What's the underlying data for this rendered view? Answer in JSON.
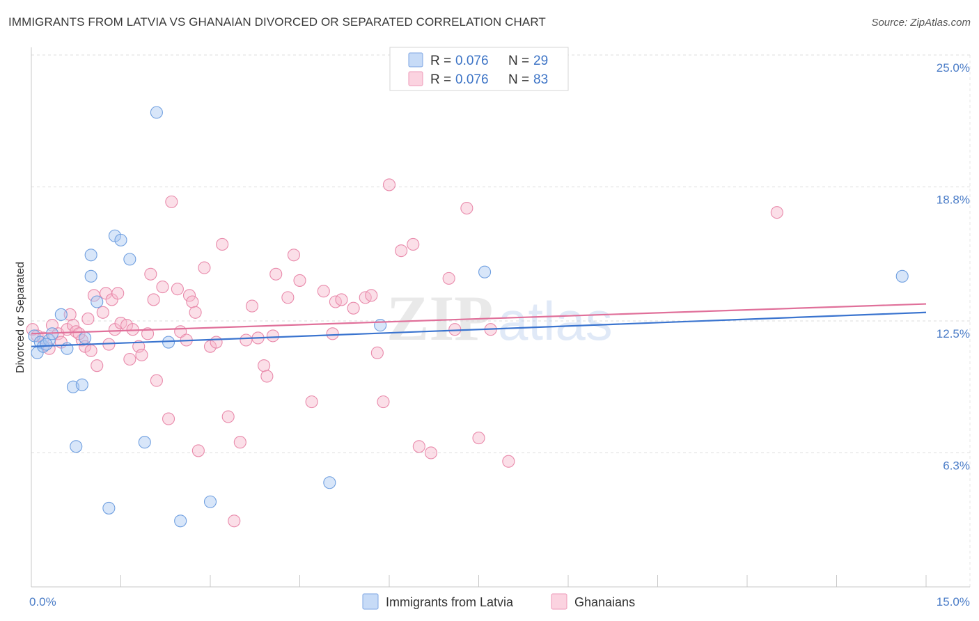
{
  "header": {
    "title": "IMMIGRANTS FROM LATVIA VS GHANAIAN DIVORCED OR SEPARATED CORRELATION CHART",
    "source": "Source: ZipAtlas.com"
  },
  "watermark": {
    "part1": "ZIP",
    "part2": "atlas"
  },
  "legend": {
    "rows": [
      {
        "r_label": "R =",
        "r_value": "0.076",
        "n_label": "N =",
        "n_value": "29",
        "color": "#8fb4ea"
      },
      {
        "r_label": "R =",
        "r_value": "0.076",
        "n_label": "N =",
        "n_value": "83",
        "color": "#f2a6bf"
      }
    ]
  },
  "bottom_legend": {
    "items": [
      {
        "label": "Immigrants from Latvia",
        "color": "#8fb4ea"
      },
      {
        "label": "Ghanaians",
        "color": "#f2a6bf"
      }
    ]
  },
  "chart_data": {
    "type": "scatter",
    "title": "IMMIGRANTS FROM LATVIA VS GHANAIAN DIVORCED OR SEPARATED CORRELATION CHART",
    "xlabel": "",
    "ylabel": "Divorced or Separated",
    "xlim": [
      0,
      15
    ],
    "ylim": [
      0,
      25
    ],
    "x_tick_labels": [
      "0.0%",
      "15.0%"
    ],
    "y_ticks": [
      6.3,
      12.5,
      18.8,
      25.0
    ],
    "y_tick_labels": [
      "6.3%",
      "12.5%",
      "18.8%",
      "25.0%"
    ],
    "grid": true,
    "legend_placement": "top-center",
    "series": [
      {
        "name": "Immigrants from Latvia",
        "color": "#6f9fe0",
        "fill": "#a9c7f1",
        "trend": {
          "x": [
            0,
            15
          ],
          "y": [
            11.3,
            12.9
          ]
        },
        "points": [
          [
            0.05,
            11.8
          ],
          [
            0.1,
            11.0
          ],
          [
            0.15,
            11.5
          ],
          [
            0.2,
            11.3
          ],
          [
            0.3,
            11.6
          ],
          [
            0.35,
            11.9
          ],
          [
            0.5,
            12.8
          ],
          [
            0.6,
            11.2
          ],
          [
            0.7,
            9.4
          ],
          [
            0.75,
            6.6
          ],
          [
            0.85,
            9.5
          ],
          [
            0.9,
            11.7
          ],
          [
            1.0,
            15.6
          ],
          [
            1.0,
            14.6
          ],
          [
            1.1,
            13.4
          ],
          [
            1.3,
            3.7
          ],
          [
            1.4,
            16.5
          ],
          [
            1.5,
            16.3
          ],
          [
            1.65,
            15.4
          ],
          [
            1.9,
            6.8
          ],
          [
            2.1,
            22.3
          ],
          [
            2.3,
            11.5
          ],
          [
            2.5,
            3.1
          ],
          [
            3.0,
            4.0
          ],
          [
            5.0,
            4.9
          ],
          [
            5.85,
            12.3
          ],
          [
            7.6,
            14.8
          ],
          [
            14.6,
            14.6
          ],
          [
            0.25,
            11.4
          ]
        ]
      },
      {
        "name": "Ghanaians",
        "color": "#e98aab",
        "fill": "#f6b8cc",
        "trend": {
          "x": [
            0,
            15
          ],
          "y": [
            11.9,
            13.3
          ]
        },
        "points": [
          [
            0.02,
            12.1
          ],
          [
            0.1,
            11.8
          ],
          [
            0.2,
            11.7
          ],
          [
            0.3,
            11.2
          ],
          [
            0.35,
            12.3
          ],
          [
            0.45,
            11.9
          ],
          [
            0.5,
            11.5
          ],
          [
            0.6,
            12.1
          ],
          [
            0.65,
            12.8
          ],
          [
            0.7,
            12.3
          ],
          [
            0.75,
            12.0
          ],
          [
            0.85,
            11.6
          ],
          [
            0.9,
            11.3
          ],
          [
            0.95,
            12.6
          ],
          [
            1.0,
            11.1
          ],
          [
            1.05,
            13.7
          ],
          [
            1.1,
            10.4
          ],
          [
            1.2,
            12.9
          ],
          [
            1.25,
            13.8
          ],
          [
            1.3,
            11.4
          ],
          [
            1.35,
            13.5
          ],
          [
            1.4,
            12.1
          ],
          [
            1.45,
            13.8
          ],
          [
            1.5,
            12.4
          ],
          [
            1.6,
            12.3
          ],
          [
            1.65,
            10.7
          ],
          [
            1.7,
            12.1
          ],
          [
            1.8,
            11.3
          ],
          [
            1.85,
            10.9
          ],
          [
            1.95,
            11.9
          ],
          [
            2.0,
            14.7
          ],
          [
            2.05,
            13.5
          ],
          [
            2.1,
            9.7
          ],
          [
            2.2,
            14.1
          ],
          [
            2.3,
            7.9
          ],
          [
            2.35,
            18.1
          ],
          [
            2.45,
            14.0
          ],
          [
            2.5,
            12.0
          ],
          [
            2.6,
            11.6
          ],
          [
            2.65,
            13.7
          ],
          [
            2.7,
            13.4
          ],
          [
            2.75,
            12.9
          ],
          [
            2.8,
            6.4
          ],
          [
            2.9,
            15.0
          ],
          [
            3.0,
            11.3
          ],
          [
            3.1,
            11.5
          ],
          [
            3.2,
            16.1
          ],
          [
            3.3,
            8.0
          ],
          [
            3.5,
            6.8
          ],
          [
            3.6,
            11.6
          ],
          [
            3.7,
            13.2
          ],
          [
            3.8,
            11.7
          ],
          [
            3.9,
            10.4
          ],
          [
            3.95,
            9.9
          ],
          [
            4.05,
            11.8
          ],
          [
            4.1,
            14.7
          ],
          [
            4.3,
            13.6
          ],
          [
            4.4,
            15.6
          ],
          [
            4.5,
            14.4
          ],
          [
            4.7,
            8.7
          ],
          [
            4.9,
            13.9
          ],
          [
            5.05,
            11.9
          ],
          [
            5.1,
            13.4
          ],
          [
            5.2,
            13.5
          ],
          [
            5.4,
            13.1
          ],
          [
            5.6,
            13.6
          ],
          [
            5.7,
            13.7
          ],
          [
            5.8,
            11.0
          ],
          [
            5.9,
            8.7
          ],
          [
            6.0,
            18.9
          ],
          [
            6.2,
            15.8
          ],
          [
            6.4,
            16.1
          ],
          [
            6.5,
            6.6
          ],
          [
            6.7,
            6.3
          ],
          [
            7.0,
            14.5
          ],
          [
            7.1,
            12.1
          ],
          [
            7.3,
            17.8
          ],
          [
            7.5,
            7.0
          ],
          [
            7.7,
            12.1
          ],
          [
            8.0,
            5.9
          ],
          [
            3.4,
            3.1
          ],
          [
            12.5,
            17.6
          ],
          [
            0.8,
            11.9
          ]
        ]
      }
    ]
  }
}
